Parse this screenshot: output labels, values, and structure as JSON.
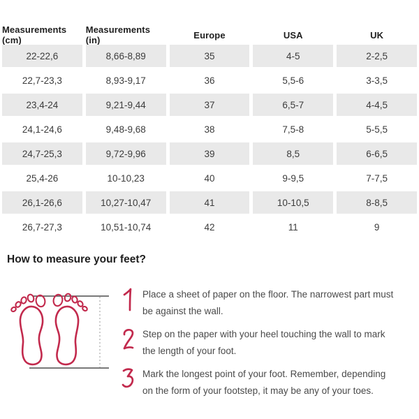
{
  "table": {
    "headers": [
      "Measurements (cm)",
      "Measurements (in)",
      "Europe",
      "USA",
      "UK"
    ],
    "rows": [
      [
        "22-22,6",
        "8,66-8,89",
        "35",
        "4-5",
        "2-2,5"
      ],
      [
        "22,7-23,3",
        "8,93-9,17",
        "36",
        "5,5-6",
        "3-3,5"
      ],
      [
        "23,4-24",
        "9,21-9,44",
        "37",
        "6,5-7",
        "4-4,5"
      ],
      [
        "24,1-24,6",
        "9,48-9,68",
        "38",
        "7,5-8",
        "5-5,5"
      ],
      [
        "24,7-25,3",
        "9,72-9,96",
        "39",
        "8,5",
        "6-6,5"
      ],
      [
        "25,4-26",
        "10-10,23",
        "40",
        "9-9,5",
        "7-7,5"
      ],
      [
        "26,1-26,6",
        "10,27-10,47",
        "41",
        "10-10,5",
        "8-8,5"
      ],
      [
        "26,7-27,3",
        "10,51-10,74",
        "42",
        "11",
        "9"
      ]
    ]
  },
  "guide": {
    "heading": "How to measure your feet?",
    "illustration": "footprints-between-wall-lines-with-length-measure",
    "steps": [
      {
        "number": "1",
        "lines": [
          "Place a sheet of paper on the floor. The narrowest part must",
          "be against the wall."
        ]
      },
      {
        "number": "2",
        "lines": [
          "Step on the paper with your heel touching the wall to mark",
          "the length of your foot."
        ]
      },
      {
        "number": "3",
        "lines": [
          "Mark the longest point of your foot. Remember, depending",
          "on the form of your footstep, it may be any of your toes."
        ]
      }
    ]
  },
  "colors": {
    "accent_red": "#c22a4d",
    "row_gray": "#e9e9e9",
    "text_dark": "#1f1f1f",
    "text_body": "#4a4a4a",
    "line_gray": "#4d4d4d"
  }
}
